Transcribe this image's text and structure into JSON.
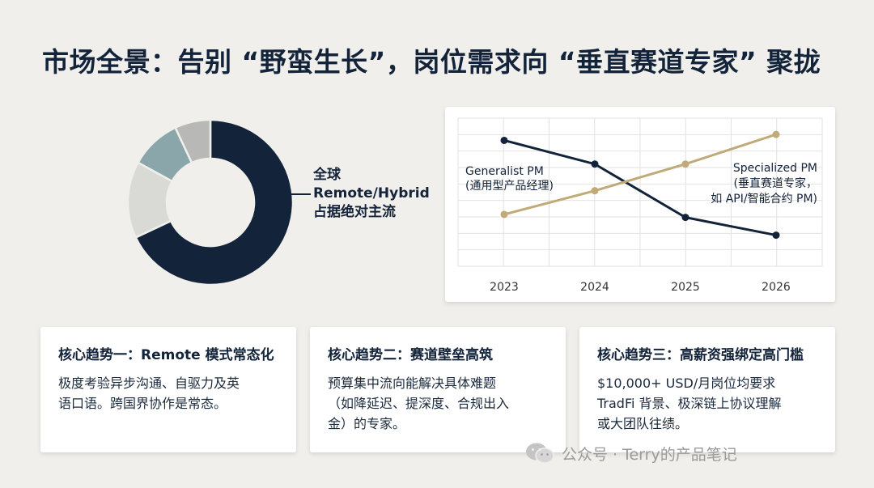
{
  "title": "市场全景：告别 “野蛮生长”，岗位需求向 “垂直赛道专家” 聚拢",
  "donut": {
    "label_lines": [
      "全球",
      "Remote/Hybrid",
      "占据绝对主流"
    ],
    "chart_data": {
      "type": "pie",
      "values": [
        68,
        15,
        10,
        7
      ],
      "colors": [
        "#13233a",
        "#d9d9d6",
        "#8aa6ab",
        "#b8b8b6"
      ]
    }
  },
  "line_chart": {
    "chart_data": {
      "type": "line",
      "x": [
        "2023",
        "2024",
        "2025",
        "2026"
      ],
      "ylim": [
        0,
        100
      ],
      "grid": true,
      "series": [
        {
          "name": "Generalist PM",
          "values": [
            85,
            69,
            33,
            21
          ],
          "color": "#13233a"
        },
        {
          "name": "Specialized PM",
          "values": [
            35,
            51,
            69,
            89
          ],
          "color": "#c0aa78"
        }
      ],
      "annotations": [
        {
          "lines": [
            "Generalist PM",
            "(通用型产品经理)"
          ]
        },
        {
          "lines": [
            "Specialized PM",
            "(垂直赛道专家，",
            "如 API/智能合约 PM)"
          ]
        }
      ]
    }
  },
  "cards": [
    {
      "title": "核心趋势一：Remote 模式常态化",
      "lines": [
        "极度考验异步沟通、自驱力及英",
        "语口语。跨国界协作是常态。"
      ]
    },
    {
      "title": "核心趋势二：赛道壁垒高筑",
      "lines": [
        "预算集中流向能解决具体难题",
        "（如降延迟、提深度、合规出入",
        "金）的专家。"
      ]
    },
    {
      "title": "核心趋势三：高薪资强绑定高门槛",
      "lines": [
        "$10,000+ USD/月岗位均要求",
        "TradFi 背景、极深链上协议理解",
        "或大团队往绩。"
      ]
    }
  ],
  "watermark": {
    "text": "公众号 · Terry的产品笔记",
    "icon": "wechat-icon"
  }
}
